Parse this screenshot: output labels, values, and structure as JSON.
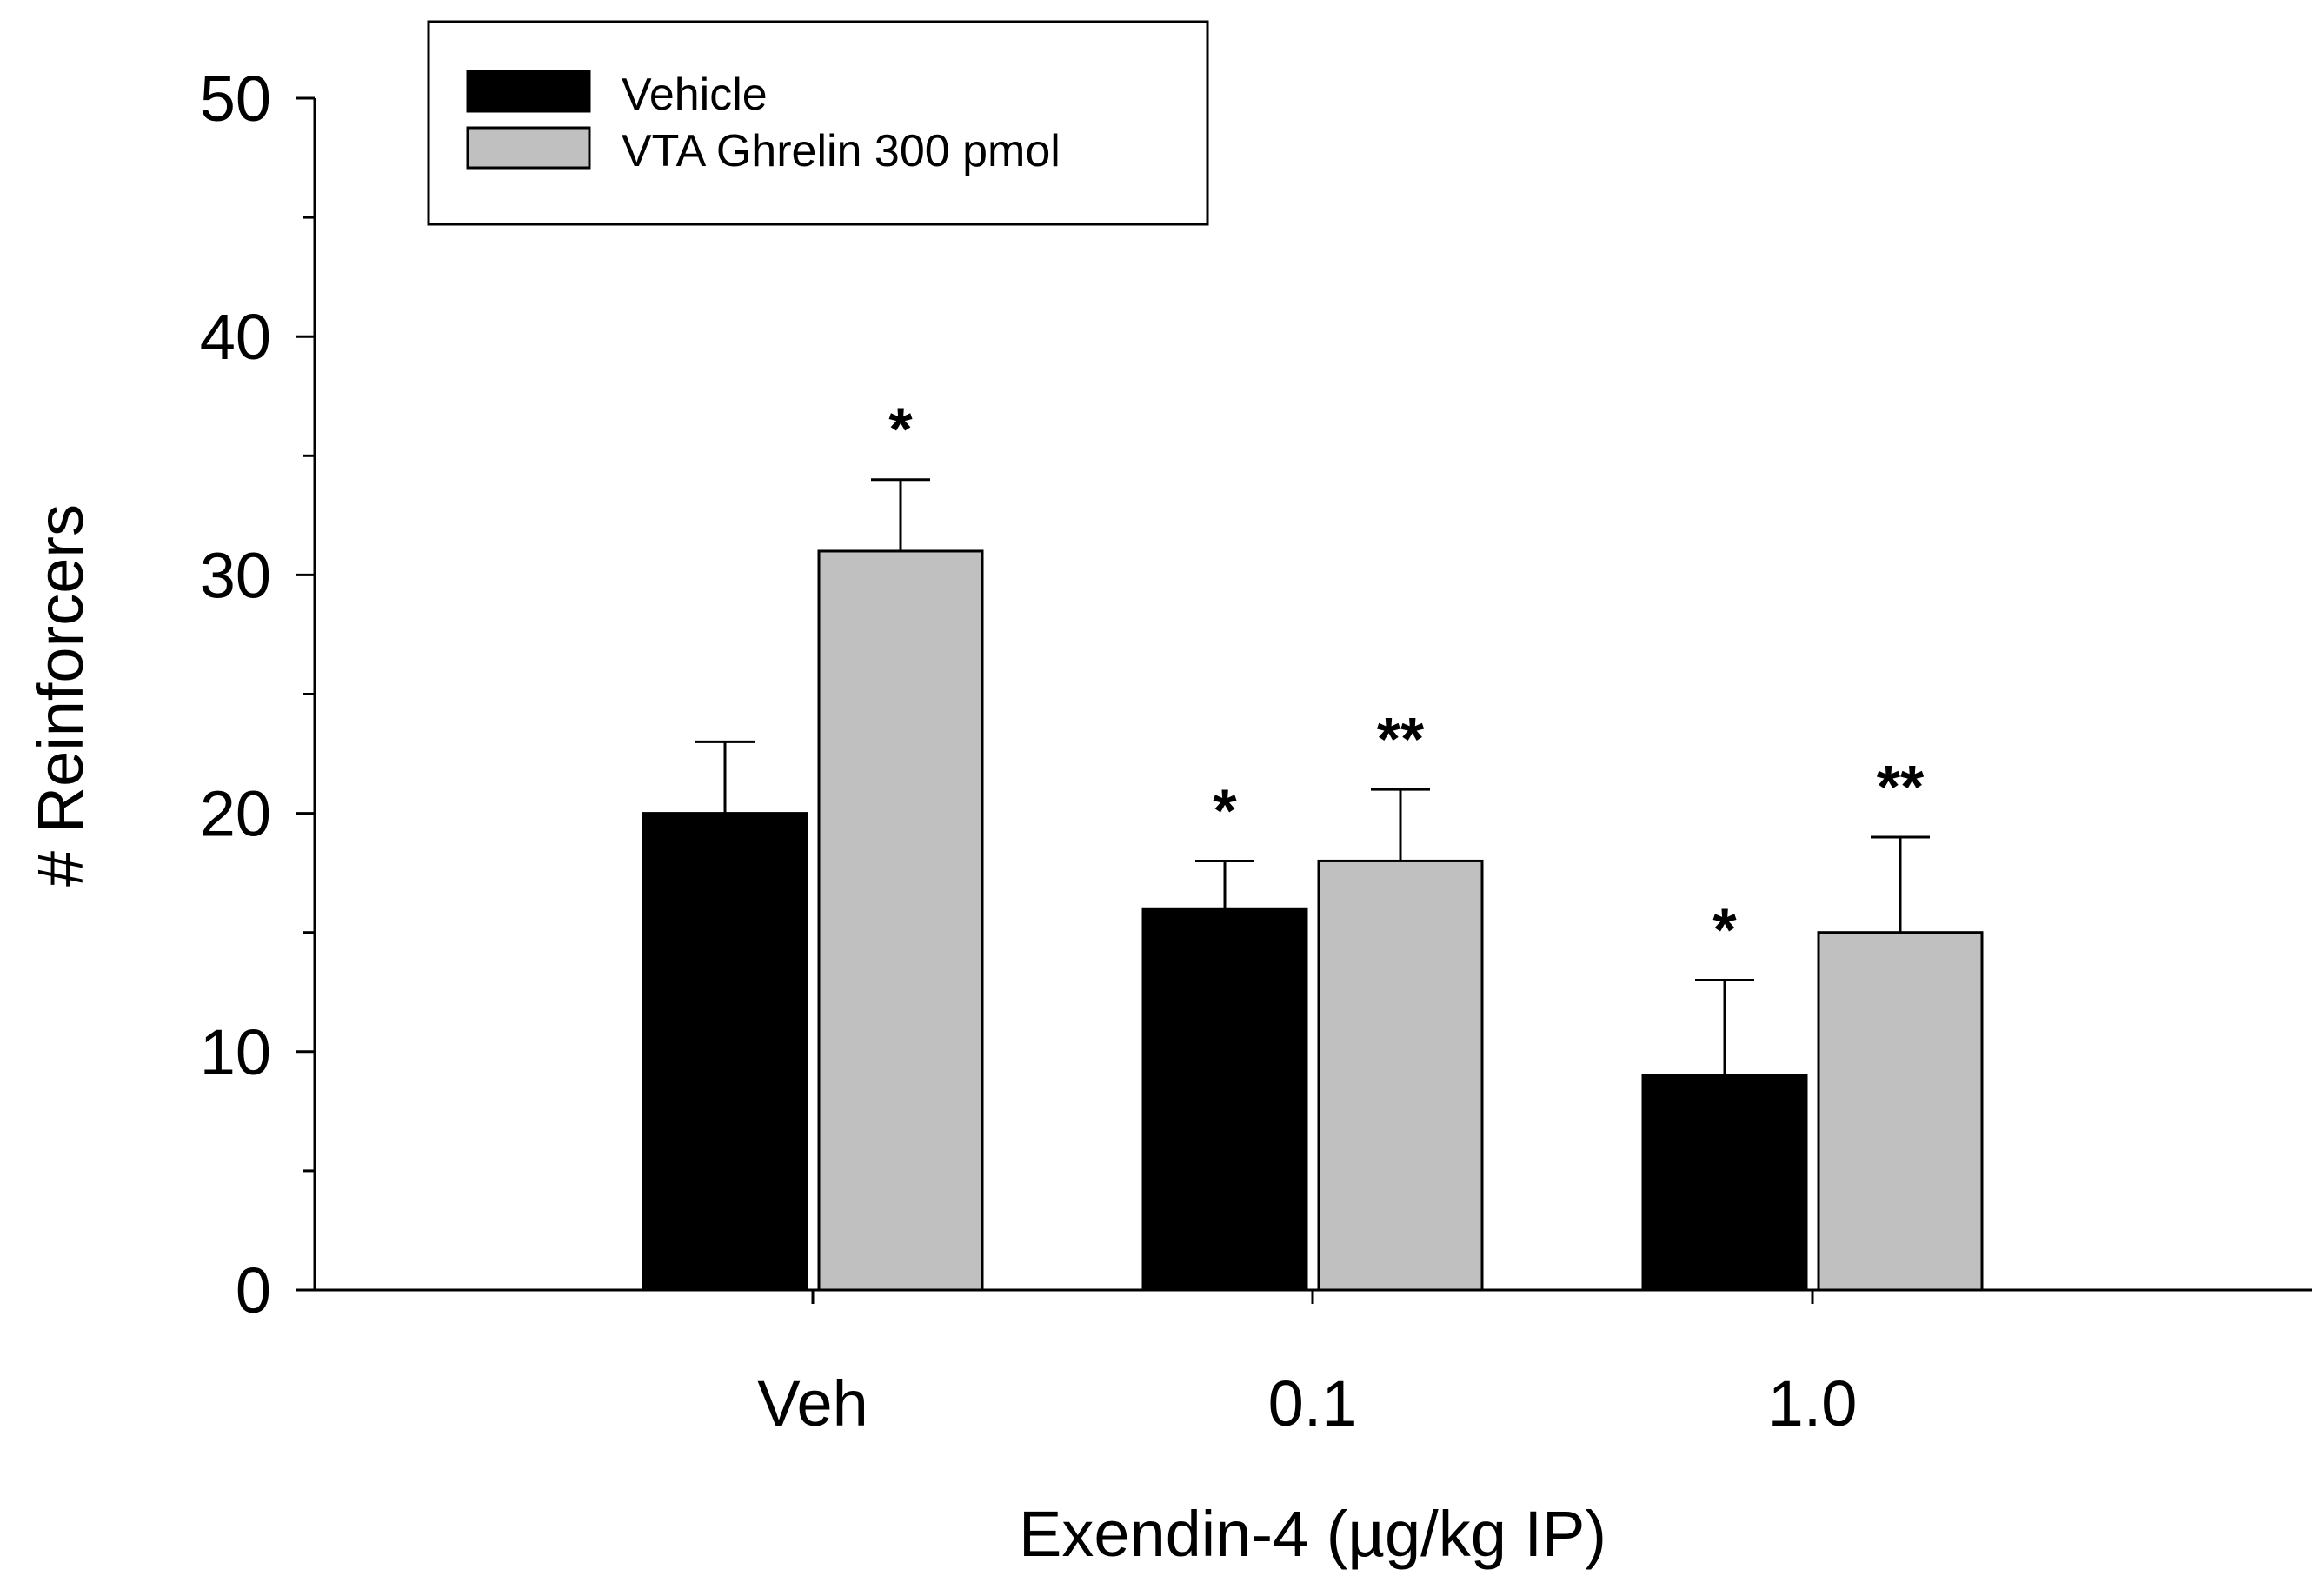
{
  "chart_data": {
    "type": "bar",
    "xlabel": "Exendin-4 (µg/kg IP)",
    "ylabel": "# Reinforcers",
    "ylim": [
      0,
      50
    ],
    "yticks": [
      0,
      10,
      20,
      30,
      40,
      50
    ],
    "categories": [
      "Veh",
      "0.1",
      "1.0"
    ],
    "series": [
      {
        "name": "Vehicle",
        "color": "#000000",
        "values": [
          20,
          16,
          9
        ],
        "errors": [
          3,
          2,
          4
        ],
        "annotations": [
          "",
          "*",
          "*"
        ]
      },
      {
        "name": "VTA Ghrelin 300 pmol",
        "color": "#c0c0c0",
        "values": [
          31,
          18,
          15
        ],
        "errors": [
          3,
          3,
          4
        ],
        "annotations": [
          "*",
          "**",
          "**"
        ]
      }
    ],
    "legend": {
      "position": "top-left"
    },
    "grid": false
  }
}
